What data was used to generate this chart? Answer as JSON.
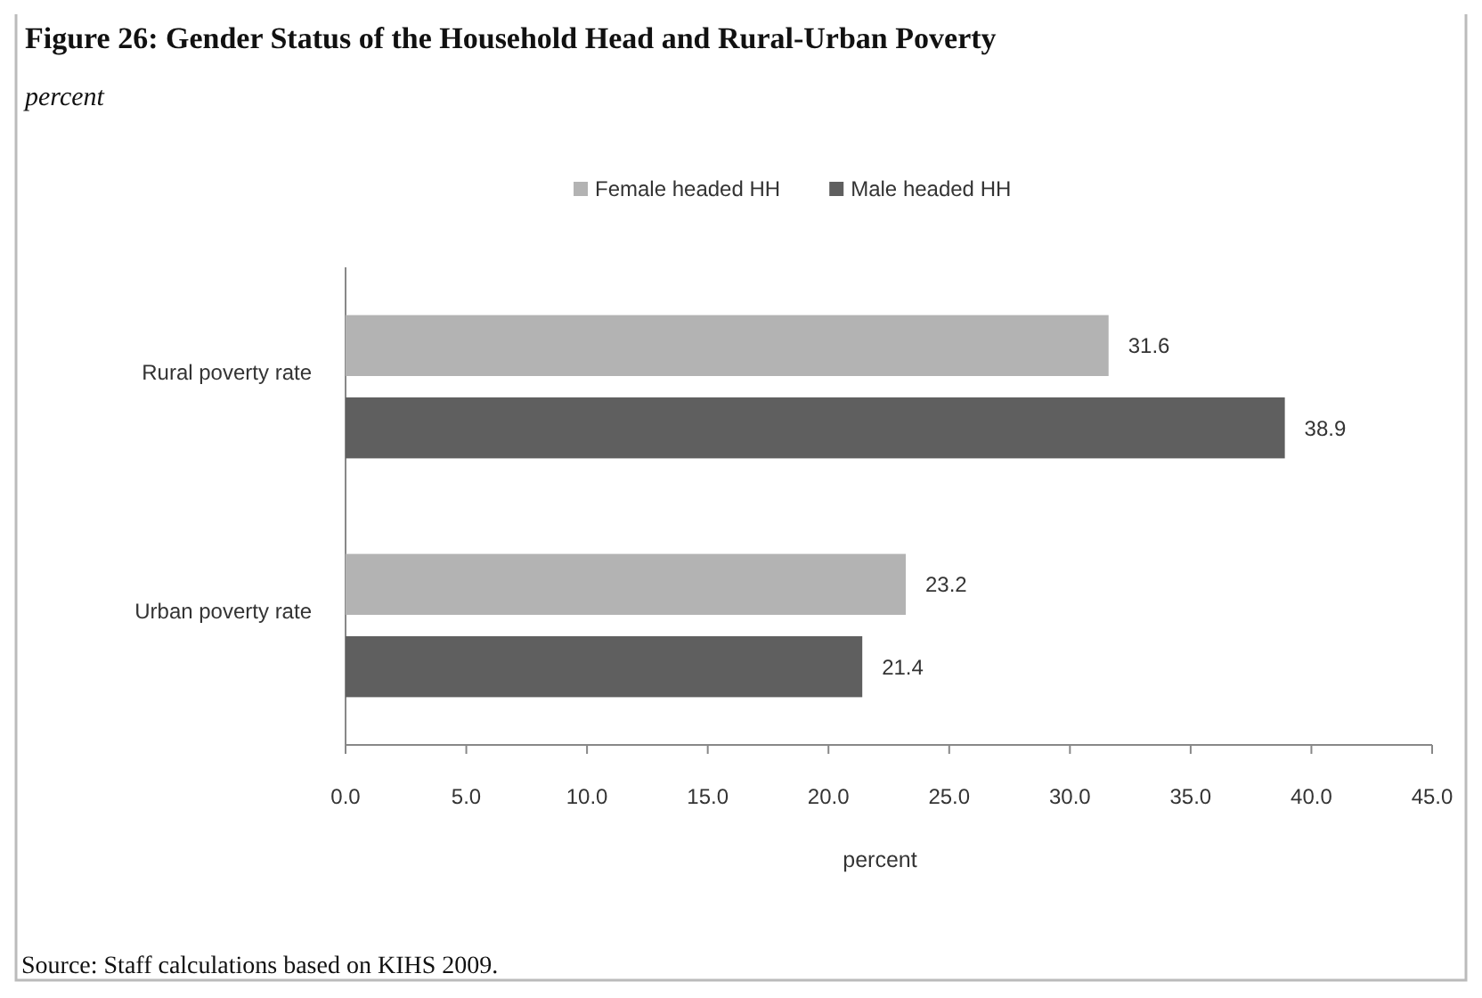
{
  "chart_data": {
    "type": "bar",
    "title": "Figure 26: Gender Status of the Household Head and Rural-Urban Poverty",
    "subtitle": "percent",
    "xlabel": "percent",
    "orientation": "horizontal",
    "legend": "top",
    "data_labels": true,
    "categories": [
      "Rural poverty rate",
      "Urban poverty rate"
    ],
    "series": [
      {
        "name": "Female headed HH",
        "color": "#b3b3b3",
        "values": [
          31.6,
          23.2
        ]
      },
      {
        "name": "Male headed HH",
        "color": "#5f5f5f",
        "values": [
          38.9,
          21.4
        ]
      }
    ],
    "xlim": [
      0,
      45
    ],
    "xticks": [
      {
        "value": 0,
        "label": "0.0"
      },
      {
        "value": 5,
        "label": "5.0"
      },
      {
        "value": 10,
        "label": "10.0"
      },
      {
        "value": 15,
        "label": "15.0"
      },
      {
        "value": 20,
        "label": "20.0"
      },
      {
        "value": 25,
        "label": "25.0"
      },
      {
        "value": 30,
        "label": "30.0"
      },
      {
        "value": 35,
        "label": "35.0"
      },
      {
        "value": 40,
        "label": "40.0"
      },
      {
        "value": 45,
        "label": "45.0"
      }
    ],
    "annotations": [
      "Source: Staff calculations based on KIHS 2009."
    ]
  }
}
